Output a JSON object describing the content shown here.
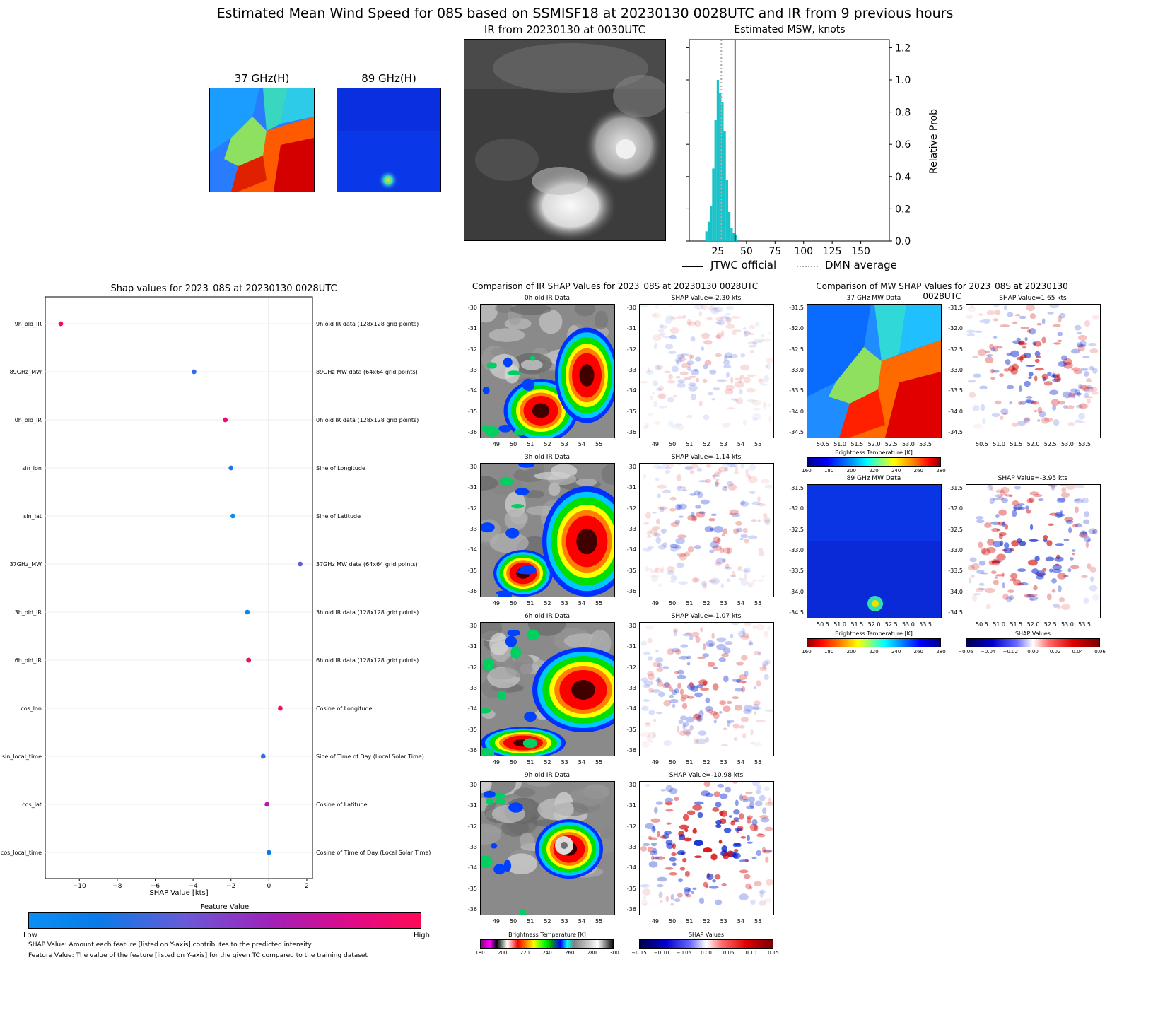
{
  "title": "Estimated Mean Wind Speed for 08S based on SSMISF18 at 20230130 0028UTC and IR from 9 previous hours",
  "top": {
    "mw37_title": "37 GHz(H)",
    "mw89_title": "89 GHz(H)",
    "ir_title": "IR from 20230130 at 0030UTC",
    "msw_title": "Estimated MSW, knots",
    "legend": {
      "jtwc": "JTWC official",
      "dmn": "DMN average"
    }
  },
  "shap_panel": {
    "title": "Shap values for 2023_08S at 20230130 0028UTC",
    "xlabel": "SHAP Value [kts]",
    "colorbar_title": "Feature Value",
    "colorbar_low": "Low",
    "colorbar_high": "High",
    "note1": "SHAP Value: Amount each feature [listed on Y-axis] contributes to the predicted intensity",
    "note2": "Feature Value: The value of the feature [listed on Y-axis] for the given TC compared to the training dataset"
  },
  "ir_compare": {
    "title": "Comparison of IR SHAP Values for 2023_08S at 20230130 0028UTC",
    "rows": [
      {
        "data_title": "0h old IR Data",
        "shap_title": "SHAP Value=-2.30 kts"
      },
      {
        "data_title": "3h old IR Data",
        "shap_title": "SHAP Value=-1.14 kts"
      },
      {
        "data_title": "6h old IR Data",
        "shap_title": "SHAP Value=-1.07 kts"
      },
      {
        "data_title": "9h old IR Data",
        "shap_title": "SHAP Value=-10.98 kts"
      }
    ],
    "yticks": [
      "-30",
      "-31",
      "-32",
      "-33",
      "-34",
      "-35",
      "-36"
    ],
    "xticks": [
      "49",
      "50",
      "51",
      "52",
      "53",
      "54",
      "55"
    ],
    "cbar_bt_label": "Brightness Temperature [K]",
    "cbar_bt_ticks": [
      "180",
      "200",
      "220",
      "240",
      "260",
      "280",
      "300"
    ],
    "cbar_shap_label": "SHAP Values",
    "cbar_shap_ticks": [
      "−0.15",
      "−0.10",
      "−0.05",
      "0.00",
      "0.05",
      "0.10",
      "0.15"
    ]
  },
  "mw_compare": {
    "title": "Comparison of MW SHAP Values for 2023_08S at 20230130 0028UTC",
    "rows": [
      {
        "data_title": "37 GHz MW Data",
        "shap_title": "SHAP Value=1.65 kts"
      },
      {
        "data_title": "89 GHz MW Data",
        "shap_title": "SHAP Value=-3.95 kts"
      }
    ],
    "yticks": [
      "-31.5",
      "-32.0",
      "-32.5",
      "-33.0",
      "-33.5",
      "-34.0",
      "-34.5"
    ],
    "xticks": [
      "50.5",
      "51.0",
      "51.5",
      "52.0",
      "52.5",
      "53.0",
      "53.5"
    ],
    "cbar37_label": "Brightness Temperature [K]",
    "cbar37_ticks": [
      "160",
      "180",
      "200",
      "220",
      "240",
      "260",
      "280"
    ],
    "cbar89_label": "Brightness Temperature [K]",
    "cbar89_ticks": [
      "160",
      "180",
      "200",
      "220",
      "240",
      "260",
      "280"
    ],
    "cbar_shap_label": "SHAP Values",
    "cbar_shap_ticks": [
      "−0.06",
      "−0.04",
      "−0.02",
      "0.00",
      "0.02",
      "0.04",
      "0.06"
    ]
  },
  "chart_data": [
    {
      "type": "bar",
      "title": "Estimated MSW, knots",
      "xlabel": "",
      "ylabel": "Relative Prob",
      "xlim": [
        0,
        175
      ],
      "ylim": [
        0,
        1.25
      ],
      "xticks": [
        "25",
        "50",
        "75",
        "100",
        "125",
        "150"
      ],
      "yticks": [
        "0.0",
        "0.2",
        "0.4",
        "0.6",
        "0.8",
        "1.0",
        "1.2"
      ],
      "bar_color": "#17c3c8",
      "bins": [
        {
          "x": 15,
          "p": 0.06
        },
        {
          "x": 17,
          "p": 0.12
        },
        {
          "x": 19,
          "p": 0.22
        },
        {
          "x": 21,
          "p": 0.45
        },
        {
          "x": 23,
          "p": 0.75
        },
        {
          "x": 25,
          "p": 1.0
        },
        {
          "x": 27,
          "p": 0.92
        },
        {
          "x": 29,
          "p": 0.86
        },
        {
          "x": 31,
          "p": 0.68
        },
        {
          "x": 33,
          "p": 0.38
        },
        {
          "x": 35,
          "p": 0.18
        },
        {
          "x": 37,
          "p": 0.08
        },
        {
          "x": 39,
          "p": 0.05
        },
        {
          "x": 41,
          "p": 0.04
        }
      ],
      "jtwc_official": 40,
      "dmn_average": 28
    },
    {
      "type": "scatter",
      "title": "Shap values for 2023_08S at 20230130 0028UTC",
      "xlabel": "SHAP Value [kts]",
      "ylabel": "",
      "xlim": [
        -11.8,
        2.3
      ],
      "xticks": [
        "−10",
        "−8",
        "−6",
        "−4",
        "−2",
        "0",
        "2"
      ],
      "features": [
        {
          "name": "9h_old_IR",
          "desc": "9h old IR data (128x128 grid points)",
          "shap": -10.98,
          "value": 0.98
        },
        {
          "name": "89GHz_MW",
          "desc": "89GHz MW data (64x64 grid points)",
          "shap": -3.95,
          "value": 0.3
        },
        {
          "name": "0h_old_IR",
          "desc": "0h old IR data (128x128 grid points)",
          "shap": -2.3,
          "value": 0.9
        },
        {
          "name": "sin_lon",
          "desc": "Sine of Longitude",
          "shap": -2.0,
          "value": 0.25
        },
        {
          "name": "sin_lat",
          "desc": "Sine of Latitude",
          "shap": -1.9,
          "value": 0.05
        },
        {
          "name": "37GHz_MW",
          "desc": "37GHz MW data (64x64 grid points)",
          "shap": 1.65,
          "value": 0.4
        },
        {
          "name": "3h_old_IR",
          "desc": "3h old IR data (128x128 grid points)",
          "shap": -1.14,
          "value": 0.1
        },
        {
          "name": "6h_old_IR",
          "desc": "6h old IR data (128x128 grid points)",
          "shap": -1.07,
          "value": 0.95
        },
        {
          "name": "cos_lon",
          "desc": "Cosine of Longitude",
          "shap": 0.6,
          "value": 0.97
        },
        {
          "name": "sin_local_time",
          "desc": "Sine of Time of Day (Local Solar Time)",
          "shap": -0.3,
          "value": 0.3
        },
        {
          "name": "cos_lat",
          "desc": "Cosine of Latitude",
          "shap": -0.1,
          "value": 0.7
        },
        {
          "name": "cos_local_time",
          "desc": "Cosine of Time of Day (Local Solar Time)",
          "shap": 0.0,
          "value": 0.2
        }
      ]
    }
  ]
}
